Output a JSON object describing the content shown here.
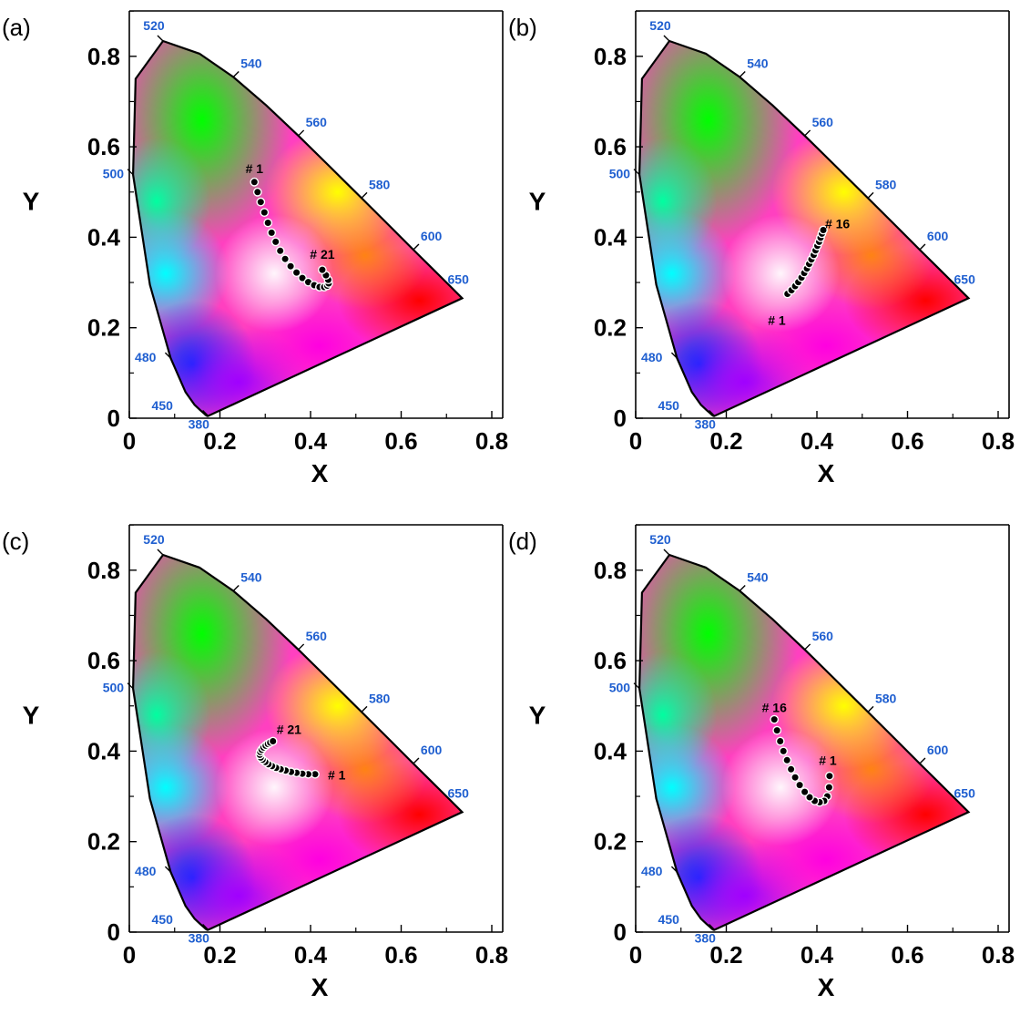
{
  "chart_data": [
    {
      "panel": "(a)",
      "type": "scatter",
      "xlabel": "X",
      "ylabel": "Y",
      "xlim": [
        0,
        0.8
      ],
      "ylim": [
        0,
        0.9
      ],
      "xticks": [
        "0",
        "0.2",
        "0.4",
        "0.6",
        "0.8"
      ],
      "yticks": [
        "0",
        "0.2",
        "0.4",
        "0.6",
        "0.8"
      ],
      "wavelength_labels": [
        "380",
        "450",
        "480",
        "500",
        "520",
        "540",
        "560",
        "580",
        "600",
        "650"
      ],
      "series": [
        {
          "x": [
            0.276,
            0.283,
            0.29,
            0.298,
            0.306,
            0.314,
            0.323,
            0.333,
            0.344,
            0.356,
            0.369,
            0.382,
            0.395,
            0.408,
            0.42,
            0.43,
            0.437,
            0.44,
            0.439,
            0.434,
            0.426
          ],
          "y": [
            0.522,
            0.5,
            0.478,
            0.455,
            0.432,
            0.41,
            0.39,
            0.37,
            0.352,
            0.336,
            0.322,
            0.31,
            0.301,
            0.294,
            0.29,
            0.29,
            0.293,
            0.298,
            0.306,
            0.316,
            0.328
          ]
        }
      ],
      "annotations": [
        {
          "text": "# 1",
          "x": 0.276,
          "y": 0.522
        },
        {
          "text": "# 21",
          "x": 0.426,
          "y": 0.328
        }
      ]
    },
    {
      "panel": "(b)",
      "type": "scatter",
      "xlabel": "X",
      "ylabel": "Y",
      "xlim": [
        0,
        0.8
      ],
      "ylim": [
        0,
        0.9
      ],
      "xticks": [
        "0",
        "0.2",
        "0.4",
        "0.6",
        "0.8"
      ],
      "yticks": [
        "0",
        "0.2",
        "0.4",
        "0.6",
        "0.8"
      ],
      "wavelength_labels": [
        "380",
        "450",
        "480",
        "500",
        "520",
        "540",
        "560",
        "580",
        "600",
        "650"
      ],
      "series": [
        {
          "x": [
            0.335,
            0.344,
            0.352,
            0.359,
            0.366,
            0.372,
            0.378,
            0.383,
            0.388,
            0.393,
            0.397,
            0.401,
            0.405,
            0.408,
            0.411,
            0.414
          ],
          "y": [
            0.275,
            0.283,
            0.292,
            0.301,
            0.311,
            0.321,
            0.331,
            0.341,
            0.351,
            0.361,
            0.371,
            0.381,
            0.39,
            0.399,
            0.408,
            0.416
          ]
        }
      ],
      "annotations": [
        {
          "text": "# 1",
          "x": 0.335,
          "y": 0.275
        },
        {
          "text": "# 16",
          "x": 0.414,
          "y": 0.416
        }
      ]
    },
    {
      "panel": "(c)",
      "type": "scatter",
      "xlabel": "X",
      "ylabel": "Y",
      "xlim": [
        0,
        0.8
      ],
      "ylim": [
        0,
        0.9
      ],
      "xticks": [
        "0",
        "0.2",
        "0.4",
        "0.6",
        "0.8"
      ],
      "yticks": [
        "0",
        "0.2",
        "0.4",
        "0.6",
        "0.8"
      ],
      "wavelength_labels": [
        "380",
        "450",
        "480",
        "500",
        "520",
        "540",
        "560",
        "580",
        "600",
        "650"
      ],
      "series": [
        {
          "x": [
            0.41,
            0.395,
            0.382,
            0.369,
            0.357,
            0.345,
            0.334,
            0.324,
            0.315,
            0.307,
            0.3,
            0.294,
            0.29,
            0.288,
            0.289,
            0.292,
            0.296,
            0.301,
            0.306,
            0.311,
            0.317
          ],
          "y": [
            0.349,
            0.349,
            0.35,
            0.352,
            0.354,
            0.357,
            0.36,
            0.363,
            0.367,
            0.371,
            0.376,
            0.381,
            0.386,
            0.392,
            0.398,
            0.403,
            0.408,
            0.412,
            0.416,
            0.419,
            0.422
          ]
        }
      ],
      "annotations": [
        {
          "text": "# 1",
          "x": 0.41,
          "y": 0.349
        },
        {
          "text": "# 21",
          "x": 0.317,
          "y": 0.422
        }
      ]
    },
    {
      "panel": "(d)",
      "type": "scatter",
      "xlabel": "X",
      "ylabel": "Y",
      "xlim": [
        0,
        0.8
      ],
      "ylim": [
        0,
        0.9
      ],
      "xticks": [
        "0",
        "0.2",
        "0.4",
        "0.6",
        "0.8"
      ],
      "yticks": [
        "0",
        "0.2",
        "0.4",
        "0.6",
        "0.8"
      ],
      "wavelength_labels": [
        "380",
        "450",
        "480",
        "500",
        "520",
        "540",
        "560",
        "580",
        "600",
        "650"
      ],
      "series": [
        {
          "x": [
            0.428,
            0.427,
            0.423,
            0.416,
            0.406,
            0.395,
            0.384,
            0.373,
            0.362,
            0.352,
            0.343,
            0.334,
            0.326,
            0.319,
            0.312,
            0.306
          ],
          "y": [
            0.345,
            0.32,
            0.3,
            0.29,
            0.287,
            0.29,
            0.298,
            0.31,
            0.325,
            0.342,
            0.36,
            0.38,
            0.4,
            0.422,
            0.446,
            0.47
          ]
        }
      ],
      "annotations": [
        {
          "text": "# 1",
          "x": 0.428,
          "y": 0.345
        },
        {
          "text": "# 16",
          "x": 0.306,
          "y": 0.47
        }
      ]
    }
  ]
}
